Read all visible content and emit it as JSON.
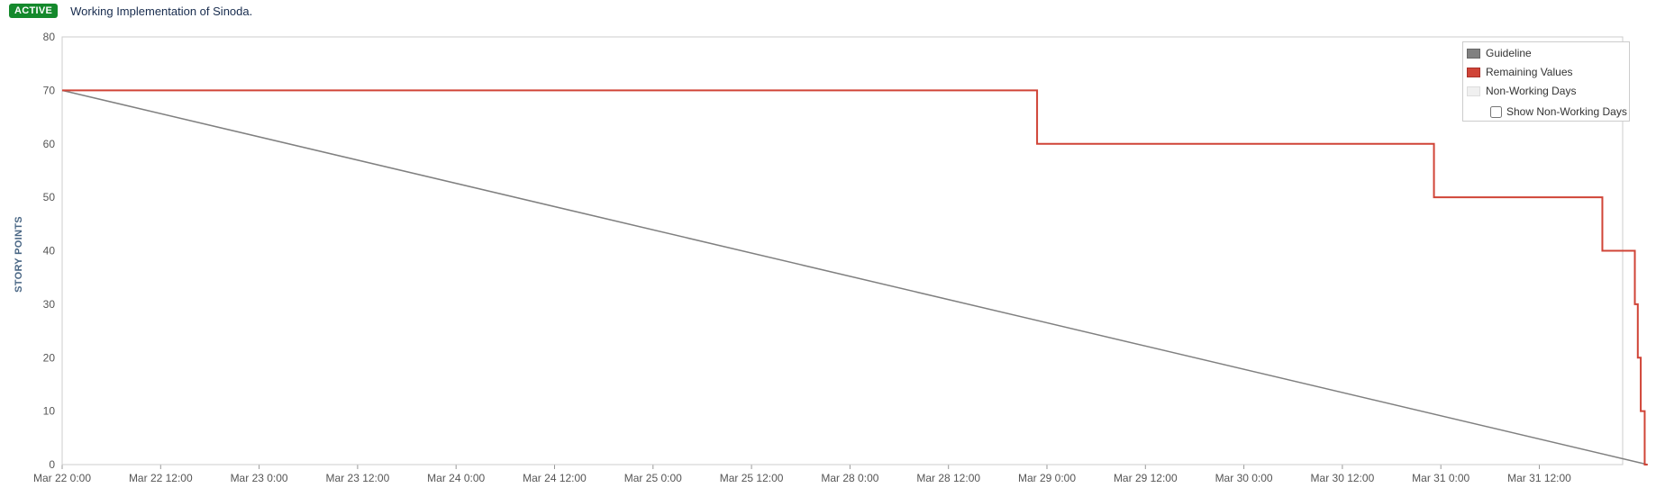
{
  "header": {
    "status_badge": "ACTIVE",
    "sprint_goal": "Working Implementation of Sinoda."
  },
  "legend": {
    "items": [
      {
        "label": "Guideline",
        "color": "#808080"
      },
      {
        "label": "Remaining Values",
        "color": "#d04437"
      },
      {
        "label": "Non-Working Days",
        "color": "#f0f0f0"
      }
    ],
    "show_non_working_days_label": "Show Non-Working Days",
    "show_non_working_days_checked": false
  },
  "chart_data": {
    "type": "line",
    "ylabel": "STORY POINTS",
    "xlabel": "",
    "ylim": [
      0,
      80
    ],
    "y_ticks": [
      0,
      10,
      20,
      30,
      40,
      50,
      60,
      70,
      80
    ],
    "x_tick_labels": [
      "Mar 22 0:00",
      "Mar 22 12:00",
      "Mar 23 0:00",
      "Mar 23 12:00",
      "Mar 24 0:00",
      "Mar 24 12:00",
      "Mar 25 0:00",
      "Mar 25 12:00",
      "Mar 28 0:00",
      "Mar 28 12:00",
      "Mar 29 0:00",
      "Mar 29 12:00",
      "Mar 30 0:00",
      "Mar 30 12:00",
      "Mar 31 0:00",
      "Mar 31 12:00"
    ],
    "x_range_ticks": [
      0,
      16.1
    ],
    "grid": false,
    "legend_position": "top-right",
    "series": [
      {
        "name": "Guideline",
        "color": "#808080",
        "step": false,
        "x": [
          0,
          16.1
        ],
        "values": [
          70,
          0
        ]
      },
      {
        "name": "Remaining Values",
        "color": "#d04437",
        "step": true,
        "x": [
          0,
          9.9,
          13.93,
          15.64,
          15.97,
          16.0,
          16.03,
          16.07,
          16.1
        ],
        "values": [
          70,
          60,
          50,
          40,
          30,
          20,
          10,
          0,
          0
        ]
      }
    ]
  }
}
